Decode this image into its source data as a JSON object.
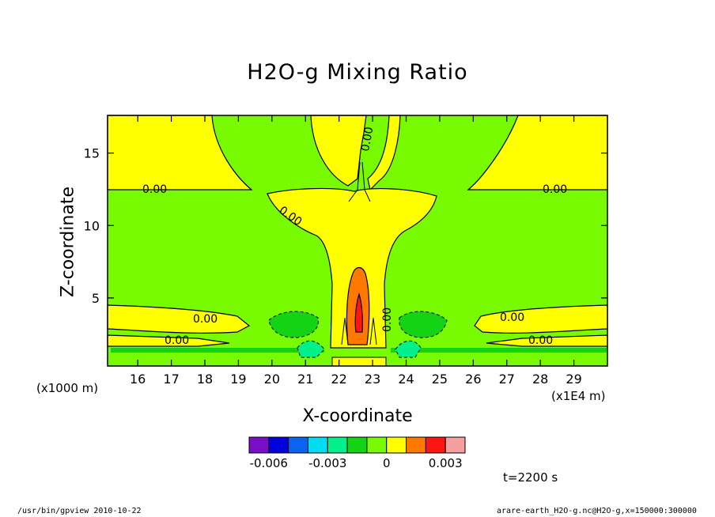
{
  "chart_data": {
    "type": "heatmap",
    "title": "H2O-g Mixing Ratio",
    "xlabel": "X-coordinate",
    "ylabel": "Z-coordinate",
    "x_unit": "(x1E4 m)",
    "y_unit": "(x1000 m)",
    "xlim": [
      15.1,
      30.0
    ],
    "ylim": [
      0.3,
      17.6
    ],
    "x_ticks": [
      16,
      17,
      18,
      19,
      20,
      21,
      22,
      23,
      24,
      25,
      26,
      27,
      28,
      29
    ],
    "y_ticks": [
      5,
      10,
      15
    ],
    "contour_labels": [
      "0.00",
      "0.00",
      "0.00",
      "0.00",
      "0.00",
      "0.00",
      "0.00",
      "0.00",
      "0.00",
      "0.00"
    ],
    "colorbar": {
      "levels": [
        -0.007,
        -0.006,
        -0.005,
        -0.004,
        -0.003,
        -0.002,
        -0.001,
        0,
        0.001,
        0.002,
        0.003,
        0.004
      ],
      "colors": [
        "#7a0ec8",
        "#0000dc",
        "#0a64f0",
        "#00dcf0",
        "#00f08c",
        "#14d214",
        "#78fa00",
        "#ffff00",
        "#ff7800",
        "#ff1414",
        "#f5a0a0"
      ],
      "tick_labels": [
        "-0.006",
        "-0.003",
        "0",
        "0.003"
      ]
    },
    "annotation": "t=2200 s"
  },
  "footer": {
    "left": "/usr/bin/gpview   2010-10-22",
    "right": "arare-earth_H2O-g.nc@H2O-g,x=150000:300000"
  }
}
